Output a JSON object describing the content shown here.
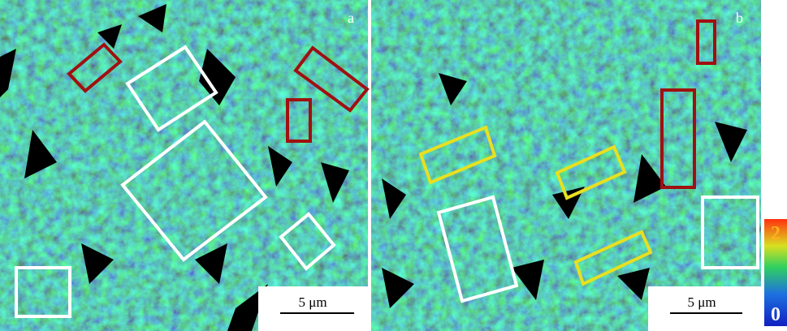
{
  "panels": [
    {
      "label": "a",
      "scale_bar": "5 μm"
    },
    {
      "label": "b",
      "scale_bar": "5 μm"
    }
  ],
  "colorbar": {
    "max": 2,
    "min": 0
  }
}
